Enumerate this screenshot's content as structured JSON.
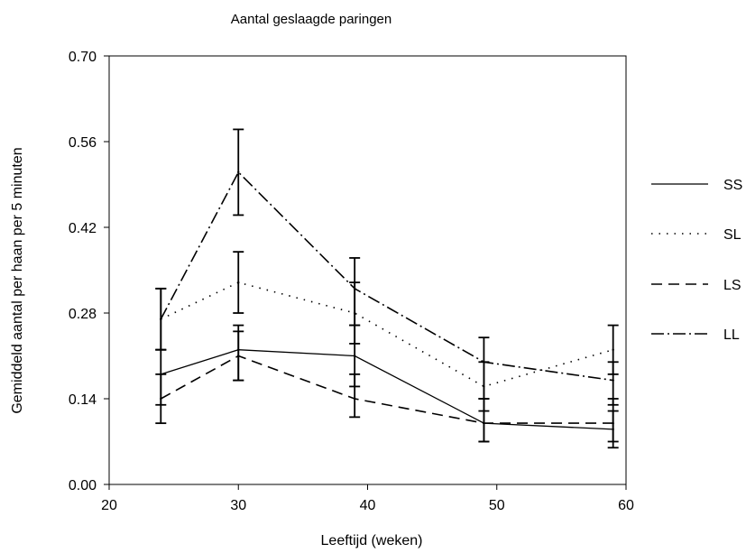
{
  "chart_data": {
    "type": "line",
    "title": "Aantal geslaagde paringen",
    "xlabel": "Leeftijd (weken)",
    "ylabel": "Gemiddeld aantal per haan per 5 minuten",
    "xlim": [
      20,
      60
    ],
    "ylim": [
      0.0,
      0.7
    ],
    "xticks": [
      20,
      30,
      40,
      50,
      60
    ],
    "xtick_labels": [
      "20",
      "30",
      "40",
      "50",
      "60"
    ],
    "yticks": [
      0.0,
      0.14,
      0.28,
      0.42,
      0.56,
      0.7
    ],
    "ytick_labels": [
      "0.00",
      "0.14",
      "0.28",
      "0.42",
      "0.56",
      "0.70"
    ],
    "x": [
      24,
      30,
      39,
      49,
      59
    ],
    "grid": false,
    "legend_position": "right",
    "series": [
      {
        "name": "SS",
        "style": "solid",
        "values": [
          0.18,
          0.22,
          0.21,
          0.1,
          0.09
        ],
        "error": [
          [
            0.13,
            0.22
          ],
          [
            0.17,
            0.26
          ],
          [
            0.16,
            0.26
          ],
          [
            0.07,
            0.14
          ],
          [
            0.06,
            0.12
          ]
        ]
      },
      {
        "name": "SL",
        "style": "dotted",
        "values": [
          0.27,
          0.33,
          0.28,
          0.16,
          0.22
        ],
        "error": [
          [
            0.22,
            0.32
          ],
          [
            0.28,
            0.38
          ],
          [
            0.23,
            0.33
          ],
          [
            0.12,
            0.2
          ],
          [
            0.18,
            0.26
          ]
        ]
      },
      {
        "name": "LS",
        "style": "dashed",
        "values": [
          0.14,
          0.21,
          0.14,
          0.1,
          0.1
        ],
        "error": [
          [
            0.1,
            0.18
          ],
          [
            0.17,
            0.25
          ],
          [
            0.11,
            0.18
          ],
          [
            0.07,
            0.14
          ],
          [
            0.07,
            0.14
          ]
        ]
      },
      {
        "name": "LL",
        "style": "dash-dot",
        "values": [
          0.27,
          0.51,
          0.32,
          0.2,
          0.17
        ],
        "error": [
          [
            0.22,
            0.32
          ],
          [
            0.44,
            0.58
          ],
          [
            0.26,
            0.37
          ],
          [
            0.14,
            0.24
          ],
          [
            0.13,
            0.2
          ]
        ]
      }
    ]
  }
}
